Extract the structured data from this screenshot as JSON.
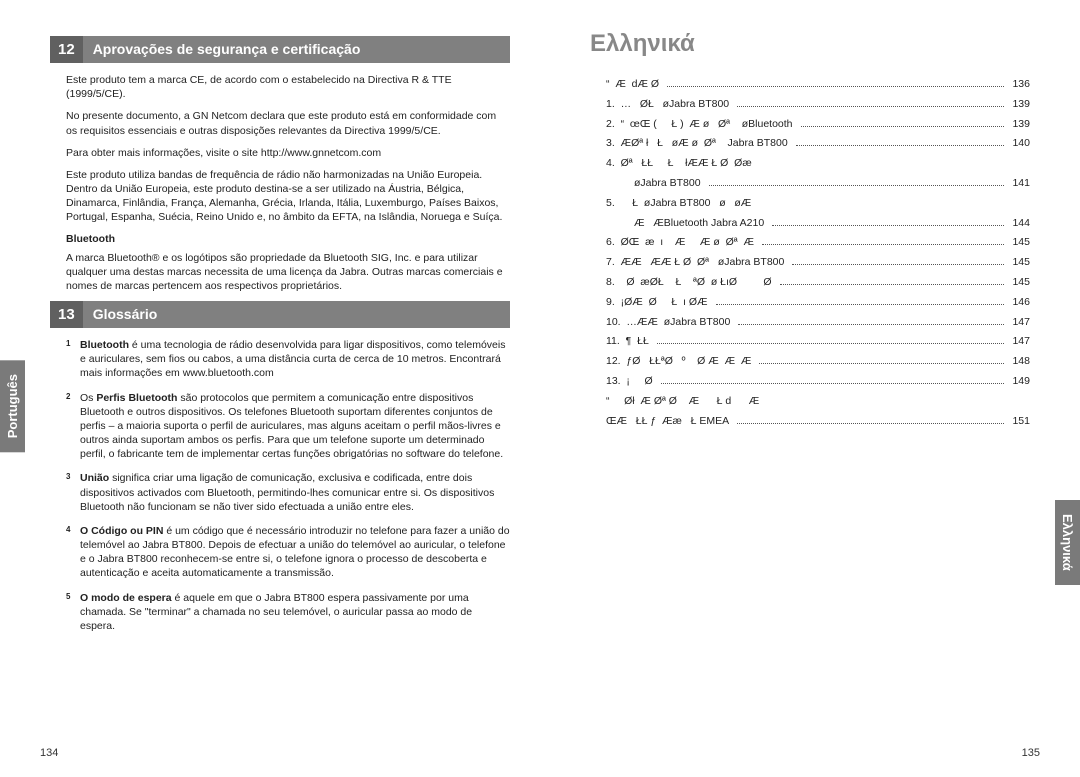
{
  "left": {
    "sideTab": "Português",
    "pageNum": "134",
    "section12": {
      "num": "12",
      "title": "Aprovações de segurança e certificação"
    },
    "p1": "Este produto tem a marca CE, de acordo com o estabelecido na Directiva R & TTE (1999/5/CE).",
    "p2": "No presente documento, a GN Netcom declara que este produto está em conformidade com os requisitos essenciais e outras disposições relevantes da Directiva 1999/5/CE.",
    "p3": "Para obter mais informações, visite o site http://www.gnnetcom.com",
    "p4": "Este produto utiliza bandas de frequência de rádio não harmonizadas na União Europeia. Dentro da União Europeia, este produto destina-se a ser utilizado na Áustria, Bélgica, Dinamarca, Finlândia, França, Alemanha, Grécia, Irlanda, Itália, Luxemburgo, Países Baixos, Portugal, Espanha, Suécia, Reino Unido e, no âmbito da EFTA, na Islândia, Noruega e Suíça.",
    "btHeading": "Bluetooth",
    "p5": "A marca Bluetooth® e os logótipos são propriedade da Bluetooth SIG, Inc. e para utilizar qualquer uma destas marcas necessita de uma licença da Jabra. Outras marcas comerciais e nomes de marcas pertencem aos respectivos proprietários.",
    "section13": {
      "num": "13",
      "title": "Glossário"
    },
    "g1t": "Bluetooth",
    "g1b": " é uma tecnologia de rádio desenvolvida para ligar dispositivos, como telemóveis e auriculares, sem fios ou cabos, a uma distância curta de cerca de 10 metros.  Encontrará mais informações em www.bluetooth.com",
    "g2t": "Perfis Bluetooth",
    "g2b": "  são protocolos que permitem a comunicação entre dispositivos Bluetooth e outros dispositivos.  Os telefones Bluetooth suportam diferentes conjuntos de perfis – a maioria suporta o perfil de auriculares, mas alguns aceitam o perfil mãos-livres e outros ainda suportam ambos os perfis. Para que um telefone suporte um determinado perfil, o fabricante tem de implementar certas funções obrigatórias no software do telefone.",
    "g3t": "União",
    "g3b": " significa criar uma ligação de comunicação, exclusiva e codificada, entre dois dispositivos activados com Bluetooth, permitindo-lhes comunicar entre si. Os dispositivos Bluetooth não funcionam se não tiver sido efectuada a união entre eles.",
    "g4t": "O Código ou PIN",
    "g4b": "  é um código que é necessário introduzir no telefone para fazer a união do telemóvel ao Jabra BT800.  Depois de efectuar a união do telemóvel ao auricular, o telefone e o Jabra BT800 reconhecem-se entre si, o telefone ignora o processo de descoberta e autenticação e aceita automaticamente a transmissão.",
    "g5t": "O modo de espera",
    "g5b": "  é aquele em que o Jabra BT800 espera passivamente por uma chamada.  Se \"terminar\" a chamada no seu telemóvel, o auricular passa ao modo de espera."
  },
  "right": {
    "sideTab": "Ελληνικά",
    "pageNum": "135",
    "title": "Ελληνικά",
    "toc": [
      {
        "label": "“  Æ  dÆ Ø",
        "page": "136",
        "indent": false
      },
      {
        "label": "1.  …   ØŁ   øJabra BT800",
        "page": "139",
        "indent": false
      },
      {
        "label": "2.  “  œŒ (     Ł )  Æ ø   Øª    øBluetooth",
        "page": "139",
        "indent": false
      },
      {
        "label": "3.  ÆØª ł   Ł   øÆ ø  Øª    Jabra BT800",
        "page": "140",
        "indent": false
      },
      {
        "label": "4.  Øª   ŁŁ     Ł    łÆÆ Ł Ø  Øæ",
        "page": "",
        "indent": false
      },
      {
        "label": "øJabra BT800",
        "page": "141",
        "indent": true
      },
      {
        "label": "5.      Ł  øJabra BT800   ø   øÆ",
        "page": "",
        "indent": false
      },
      {
        "label": "Æ   ÆBluetooth Jabra A210",
        "page": "144",
        "indent": true
      },
      {
        "label": "6.  ØŒ  æ  ı    Æ     Æ ø  Øª  Æ",
        "page": "145",
        "indent": false
      },
      {
        "label": "7.  ÆÆ   ÆÆ Ł Ø  Øª   øJabra BT800",
        "page": "145",
        "indent": false
      },
      {
        "label": "8.    Ø  æØŁ    Ł    ªØ  ø ŁıØ         Ø",
        "page": "145",
        "indent": false
      },
      {
        "label": "9.  ¡ØÆ  Ø     Ł  ı ØÆ",
        "page": "146",
        "indent": false
      },
      {
        "label": "10.  …ÆÆ  øJabra BT800",
        "page": "147",
        "indent": false
      },
      {
        "label": "11.  ¶  ŁŁ",
        "page": "147",
        "indent": false
      },
      {
        "label": "12.  ƒØ   ŁŁªØ   º    Ø Æ  Æ  Æ",
        "page": "148",
        "indent": false
      },
      {
        "label": "13.  ¡     Ø",
        "page": "149",
        "indent": false
      },
      {
        "label": "“     Øł  Æ Øª Ø    Æ      Ł d      Æ",
        "page": "",
        "indent": false
      },
      {
        "label": "ŒÆ   ŁŁ ƒ  Ææ   Ł EMEA",
        "page": "151",
        "indent": false
      }
    ]
  }
}
